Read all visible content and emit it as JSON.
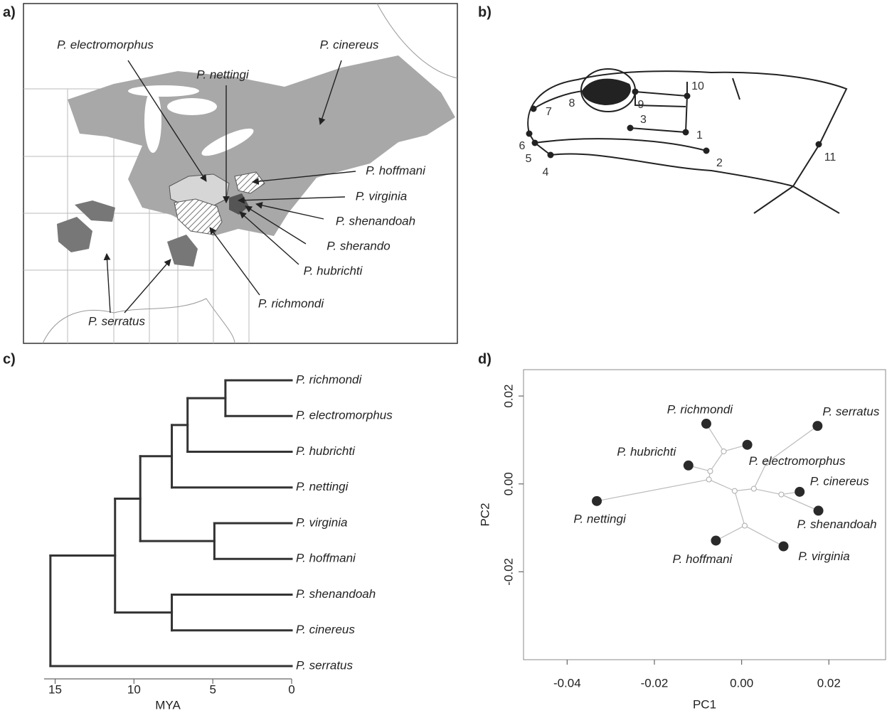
{
  "panel_labels": [
    "a)",
    "b)",
    "c)",
    "d)"
  ],
  "map": {
    "labels": [
      "P. electromorphus",
      "P. cinereus",
      "P. nettingi",
      "P. hoffmani",
      "P. virginia",
      "P. shenandoah",
      "P. sherando",
      "P. hubrichti",
      "P. richmondi",
      "P. serratus"
    ]
  },
  "skull": {
    "landmarks": [
      1,
      2,
      3,
      4,
      5,
      6,
      7,
      8,
      9,
      10,
      11
    ]
  },
  "chart_data": [
    {
      "type": "dendrogram",
      "xlabel": "MYA",
      "xlim": [
        15.7,
        0
      ],
      "xticks": [
        15,
        10,
        5,
        0
      ],
      "tree": {
        "age": 15.3,
        "children": [
          {
            "age": 11.2,
            "children": [
              {
                "age": 9.6,
                "children": [
                  {
                    "age": 7.6,
                    "children": [
                      {
                        "age": 6.6,
                        "children": [
                          {
                            "age": 4.2,
                            "children": [
                              "P. richmondi",
                              "P. electromorphus"
                            ]
                          },
                          "P. hubrichti"
                        ]
                      },
                      "P. nettingi"
                    ]
                  },
                  {
                    "age": 4.9,
                    "children": [
                      "P. virginia",
                      "P. hoffmani"
                    ]
                  }
                ]
              },
              {
                "age": 7.6,
                "children": [
                  "P. shenandoah",
                  "P. cinereus"
                ]
              }
            ]
          },
          "P. serratus"
        ]
      }
    },
    {
      "type": "scatter",
      "xlabel": "PC1",
      "ylabel": "PC2",
      "xlim": [
        -0.05,
        0.033
      ],
      "ylim": [
        -0.04,
        0.026
      ],
      "xticks": [
        -0.04,
        -0.02,
        {
          "value": 0,
          "label": "0.00"
        },
        0.02
      ],
      "yticks": [
        -0.02,
        {
          "value": 0,
          "label": "0.00"
        },
        0.02
      ],
      "labels": [
        "P. richmondi",
        "P. electromorphus",
        "P. hubrichti",
        "P. nettingi",
        "P. virginia",
        "P. hoffmani",
        "P. shenandoah",
        "P. cinereus",
        "P. serratus"
      ],
      "x": [
        -0.0081,
        0.0013,
        -0.0122,
        -0.0332,
        0.0096,
        -0.0059,
        0.0176,
        0.0133,
        0.0174
      ],
      "y": [
        0.0137,
        0.0089,
        0.0042,
        -0.0039,
        -0.0142,
        -0.0129,
        -0.0061,
        -0.0018,
        0.0132
      ],
      "nodes": {
        "x": [
          0.0057,
          0.0028,
          -0.0016,
          -0.0075,
          -0.0072,
          -0.0041,
          0.0007,
          0.0091
        ],
        "y": [
          0.0048,
          -0.0011,
          -0.0016,
          0.001,
          0.0029,
          0.0074,
          -0.0095,
          -0.0024
        ]
      }
    }
  ]
}
